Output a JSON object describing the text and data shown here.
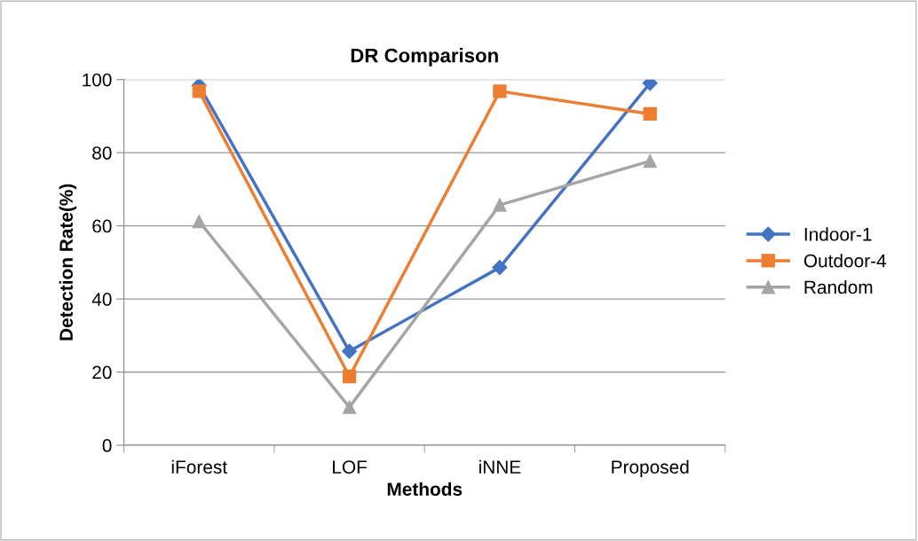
{
  "chart_data": {
    "type": "line",
    "title": "DR Comparison",
    "xlabel": "Methods",
    "ylabel": "Detection Rate(%)",
    "categories": [
      "iForest",
      "LOF",
      "iNNE",
      "Proposed"
    ],
    "series": [
      {
        "name": "Indoor-1",
        "color": "#4472c4",
        "marker": "diamond",
        "values": [
          98.4,
          25.7,
          48.6,
          99.0
        ]
      },
      {
        "name": "Outdoor-4",
        "color": "#ed7d31",
        "marker": "square",
        "values": [
          96.8,
          18.8,
          96.8,
          90.6
        ]
      },
      {
        "name": "Random",
        "color": "#a5a5a5",
        "marker": "triangle",
        "values": [
          61.2,
          10.4,
          65.7,
          77.7
        ]
      }
    ],
    "ylim": [
      0,
      100
    ],
    "yticks": [
      0,
      20,
      40,
      60,
      80,
      100
    ],
    "grid": "y",
    "legend": "right",
    "line_style": "solid"
  }
}
